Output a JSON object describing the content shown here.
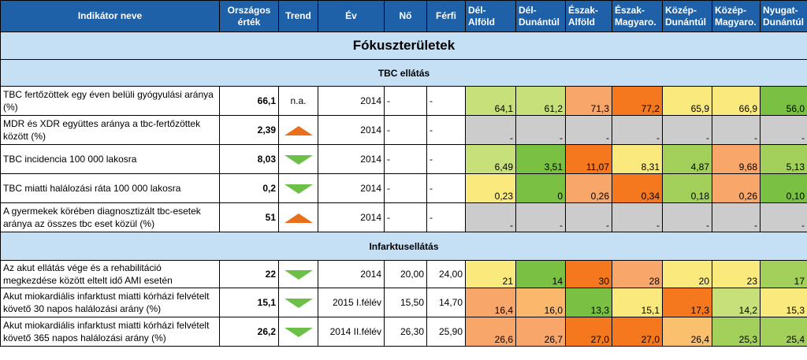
{
  "colors": {
    "header_bg": "#1f61a8",
    "section_bg": "#c5dff5",
    "trend_up": "#e8701c",
    "trend_down": "#6cc048",
    "grey": "#cccccc"
  },
  "headers": {
    "indicator": "Indikátor neve",
    "national_1": "Országos",
    "national_2": "érték",
    "trend": "Trend",
    "year": "Év",
    "female": "Nő",
    "male": "Férfi",
    "regions": [
      {
        "l1": "Dél-",
        "l2": "Alföld"
      },
      {
        "l1": "Dél-",
        "l2": "Dunántúl"
      },
      {
        "l1": "Észak-",
        "l2": "Alföld"
      },
      {
        "l1": "Észak-",
        "l2": "Magyaro."
      },
      {
        "l1": "Közép-",
        "l2": "Dunántúl"
      },
      {
        "l1": "Közép-",
        "l2": "Magyaro."
      },
      {
        "l1": "Nyugat-",
        "l2": "Dunántúl"
      }
    ]
  },
  "sections": {
    "focus": "Fókuszterületek",
    "tbc": "TBC ellátás",
    "infarct": "Infarktusellátás"
  },
  "rows": [
    {
      "name": "TBC fertőzöttek egy éven belüli gyógyulási aránya (%)",
      "national": "66,1",
      "trend": "n.a.",
      "trend_icon": "",
      "year": "2014",
      "female": "-",
      "male": "-",
      "regions": [
        {
          "v": "64,1",
          "c": "#c8e07a"
        },
        {
          "v": "61,2",
          "c": "#c8e07a"
        },
        {
          "v": "71,3",
          "c": "#f9a66a"
        },
        {
          "v": "77,2",
          "c": "#f6781e"
        },
        {
          "v": "65,9",
          "c": "#faea7e"
        },
        {
          "v": "66,9",
          "c": "#faea7e"
        },
        {
          "v": "56,0",
          "c": "#7ac143"
        }
      ]
    },
    {
      "name": "MDR és XDR együttes aránya a tbc-fertőzöttek között (%)",
      "national": "2,39",
      "trend": "",
      "trend_icon": "up",
      "year": "2014",
      "female": "-",
      "male": "-",
      "regions": [
        {
          "v": "-",
          "c": "#cccccc"
        },
        {
          "v": "-",
          "c": "#cccccc"
        },
        {
          "v": "-",
          "c": "#cccccc"
        },
        {
          "v": "-",
          "c": "#cccccc"
        },
        {
          "v": "-",
          "c": "#cccccc"
        },
        {
          "v": "-",
          "c": "#cccccc"
        },
        {
          "v": "-",
          "c": "#cccccc"
        }
      ]
    },
    {
      "name": "TBC incidencia 100 000 lakosra",
      "national": "8,03",
      "trend": "",
      "trend_icon": "down",
      "year": "2014",
      "female": "-",
      "male": "-",
      "regions": [
        {
          "v": "6,49",
          "c": "#c8e07a"
        },
        {
          "v": "3,51",
          "c": "#7ac143"
        },
        {
          "v": "11,07",
          "c": "#f6781e"
        },
        {
          "v": "8,31",
          "c": "#faea7e"
        },
        {
          "v": "4,87",
          "c": "#a2d05a"
        },
        {
          "v": "9,68",
          "c": "#f9a66a"
        },
        {
          "v": "5,13",
          "c": "#a2d05a"
        }
      ]
    },
    {
      "name": "TBC miatti halálozási ráta 100 000 lakosra",
      "national": "0,2",
      "trend": "",
      "trend_icon": "down",
      "year": "2014",
      "female": "-",
      "male": "-",
      "regions": [
        {
          "v": "0,23",
          "c": "#faea7e"
        },
        {
          "v": "0",
          "c": "#7ac143"
        },
        {
          "v": "0,26",
          "c": "#f9a66a"
        },
        {
          "v": "0,34",
          "c": "#f6781e"
        },
        {
          "v": "0,18",
          "c": "#a2d05a"
        },
        {
          "v": "0,26",
          "c": "#f9a66a"
        },
        {
          "v": "0,10",
          "c": "#7ac143"
        }
      ]
    },
    {
      "name": "A gyermekek körében diagnosztizált tbc-esetek aránya az összes tbc eset közül (%)",
      "national": "51",
      "trend": "",
      "trend_icon": "up",
      "year": "2014",
      "female": "-",
      "male": "-",
      "regions": [
        {
          "v": "-",
          "c": "#cccccc"
        },
        {
          "v": "-",
          "c": "#cccccc"
        },
        {
          "v": "-",
          "c": "#cccccc"
        },
        {
          "v": "-",
          "c": "#cccccc"
        },
        {
          "v": "-",
          "c": "#cccccc"
        },
        {
          "v": "-",
          "c": "#cccccc"
        },
        {
          "v": "-",
          "c": "#cccccc"
        }
      ]
    },
    {
      "name": "Az akut ellátás vége és a rehabilitáció megkezdése között eltelt idő AMI esetén",
      "national": "22",
      "trend": "",
      "trend_icon": "down",
      "year": "2014",
      "female": "20,00",
      "male": "24,00",
      "regions": [
        {
          "v": "21",
          "c": "#faea7e"
        },
        {
          "v": "14",
          "c": "#7ac143"
        },
        {
          "v": "30",
          "c": "#f6781e"
        },
        {
          "v": "28",
          "c": "#f9a66a"
        },
        {
          "v": "20",
          "c": "#faea7e"
        },
        {
          "v": "23",
          "c": "#faea7e"
        },
        {
          "v": "17",
          "c": "#a2d05a"
        }
      ]
    },
    {
      "name": "Akut miokardiális infarktust miatti kórházi felvételt követő 30 napos halálozási arány (%)",
      "national": "15,1",
      "trend": "",
      "trend_icon": "down",
      "year": "2015 I.félév",
      "female": "15,50",
      "male": "14,70",
      "regions": [
        {
          "v": "16,4",
          "c": "#f9a66a"
        },
        {
          "v": "16,0",
          "c": "#fbb86d"
        },
        {
          "v": "13,3",
          "c": "#7ac143"
        },
        {
          "v": "15,1",
          "c": "#faea7e"
        },
        {
          "v": "17,3",
          "c": "#f6781e"
        },
        {
          "v": "14,2",
          "c": "#c8e07a"
        },
        {
          "v": "15,3",
          "c": "#faea7e"
        }
      ]
    },
    {
      "name": "Akut miokardiális infarktust miatti kórházi felvételt követő 365 napos halálozási arány (%)",
      "national": "26,2",
      "trend": "",
      "trend_icon": "down",
      "year": "2014 II.félév",
      "female": "26,30",
      "male": "25,90",
      "regions": [
        {
          "v": "26,6",
          "c": "#f9a66a"
        },
        {
          "v": "26,7",
          "c": "#f9a66a"
        },
        {
          "v": "27,0",
          "c": "#f6781e"
        },
        {
          "v": "27,0",
          "c": "#f6781e"
        },
        {
          "v": "26,4",
          "c": "#fbc06e"
        },
        {
          "v": "25,3",
          "c": "#a2d05a"
        },
        {
          "v": "25,4",
          "c": "#a2d05a"
        }
      ]
    }
  ]
}
